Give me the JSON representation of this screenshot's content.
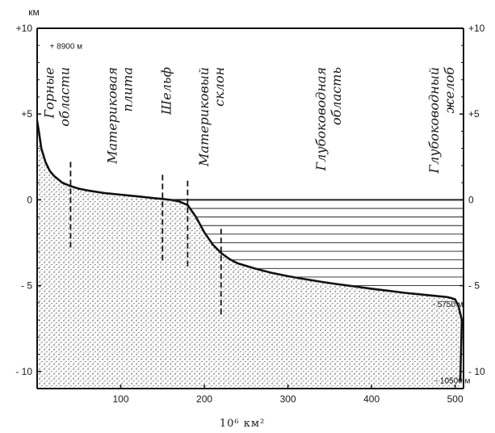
{
  "chart_data": {
    "type": "area",
    "title": "",
    "xlabel": "10⁶ км²",
    "ylabel": "км",
    "xlim": [
      0,
      510
    ],
    "ylim": [
      -11,
      10
    ],
    "x_ticks": [
      100,
      200,
      300,
      400,
      500
    ],
    "x_tick_labels": [
      "100",
      "200",
      "300",
      "400",
      "500"
    ],
    "y_ticks": [
      10,
      5,
      0,
      -5,
      -10
    ],
    "y_tick_labels": [
      "+10",
      "+5",
      "0",
      "- 5",
      "- 10"
    ],
    "series": [
      {
        "x": [
          0,
          2,
          5,
          10,
          15,
          20,
          30,
          40,
          50,
          60,
          80,
          100,
          120,
          140,
          150,
          160,
          170,
          180,
          190,
          200,
          210,
          220,
          230,
          240,
          260,
          280,
          300,
          320,
          340,
          360,
          380,
          400,
          420,
          440,
          460,
          480,
          490,
          495,
          500,
          504,
          508
        ],
        "values": [
          4.6,
          4.0,
          3.0,
          2.2,
          1.7,
          1.4,
          1.0,
          0.8,
          0.65,
          0.55,
          0.4,
          0.3,
          0.2,
          0.1,
          0.05,
          0.0,
          -0.1,
          -0.3,
          -1.0,
          -1.9,
          -2.6,
          -3.1,
          -3.45,
          -3.7,
          -4.0,
          -4.25,
          -4.45,
          -4.62,
          -4.78,
          -4.92,
          -5.05,
          -5.18,
          -5.3,
          -5.42,
          -5.52,
          -5.62,
          -5.66,
          -5.72,
          -5.8,
          -6.2,
          -7.0
        ]
      }
    ],
    "depth_lines": [
      0,
      -0.5,
      -1.0,
      -1.5,
      -2.0,
      -2.5,
      -3.0,
      -3.5,
      -4.0,
      -4.5,
      -5.0
    ],
    "zones": [
      {
        "label": "Горные области",
        "x": 20,
        "divider_x": 40
      },
      {
        "label": "Материковая плита",
        "x": 95
      },
      {
        "label": "Шельф",
        "x": 160,
        "divider_x": 150
      },
      {
        "label": "Материковый склон",
        "x": 205,
        "divider_x": 180
      },
      {
        "label": "Глубоководная область",
        "x": 345,
        "divider_x": 220
      },
      {
        "label": "Глубоководный желоб",
        "x": 480
      }
    ],
    "annotations": [
      {
        "label": "+ 8900 м",
        "x": 15,
        "y": 8.8
      },
      {
        "label": "- 5750 м",
        "x": 473,
        "y": -6.25
      },
      {
        "label": "- 10500 м",
        "x": 476,
        "y": -10.7
      }
    ]
  }
}
